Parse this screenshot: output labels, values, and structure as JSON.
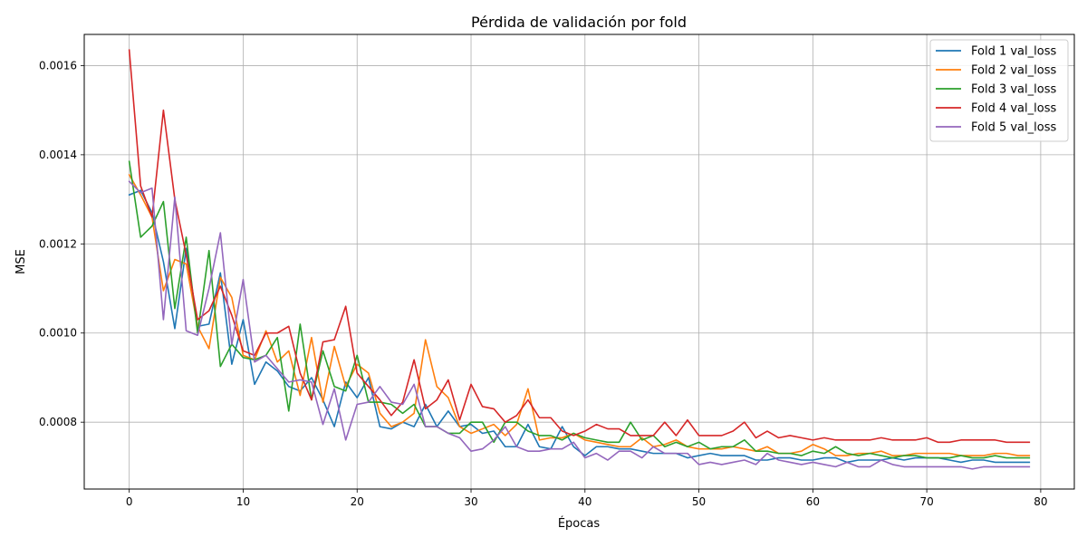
{
  "chart_data": {
    "type": "line",
    "title": "Pérdida de validación por fold",
    "xlabel": "Épocas",
    "ylabel": "MSE",
    "xlim": [
      -3.95,
      82.95
    ],
    "ylim": [
      0.00065,
      0.00167
    ],
    "xticks": [
      0,
      10,
      20,
      30,
      40,
      50,
      60,
      70,
      80
    ],
    "xtick_labels": [
      "0",
      "10",
      "20",
      "30",
      "40",
      "50",
      "60",
      "70",
      "80"
    ],
    "yticks": [
      0.0008,
      0.001,
      0.0012,
      0.0014,
      0.0016
    ],
    "ytick_labels": [
      "0.0008",
      "0.0010",
      "0.0012",
      "0.0014",
      "0.0016"
    ],
    "grid": true,
    "legend_position": "top-right",
    "series": [
      {
        "name": "Fold 1 val_loss",
        "color": "#1f77b4",
        "values": [
          0.00131,
          0.00132,
          0.00127,
          0.00116,
          0.00101,
          0.00119,
          0.001015,
          0.00102,
          0.001135,
          0.00093,
          0.00103,
          0.000885,
          0.000935,
          0.000915,
          0.00088,
          0.00087,
          0.0009,
          0.00085,
          0.00079,
          0.00089,
          0.000855,
          0.0009,
          0.00079,
          0.000785,
          0.0008,
          0.00079,
          0.00084,
          0.00079,
          0.000825,
          0.00079,
          0.000795,
          0.000775,
          0.00078,
          0.000745,
          0.000745,
          0.000795,
          0.000745,
          0.00074,
          0.00079,
          0.000745,
          0.000725,
          0.000745,
          0.000745,
          0.00074,
          0.00074,
          0.000735,
          0.00073,
          0.00073,
          0.00073,
          0.00072,
          0.000725,
          0.00073,
          0.000725,
          0.000725,
          0.000725,
          0.000715,
          0.000715,
          0.00072,
          0.00072,
          0.000715,
          0.000715,
          0.00072,
          0.00072,
          0.00071,
          0.000715,
          0.000715,
          0.000715,
          0.00072,
          0.000715,
          0.00072,
          0.00072,
          0.00072,
          0.000715,
          0.00071,
          0.000715,
          0.000715,
          0.00071,
          0.00071,
          0.00071,
          0.00071
        ]
      },
      {
        "name": "Fold 2 val_loss",
        "color": "#ff7f0e",
        "values": [
          0.001355,
          0.00131,
          0.00126,
          0.001095,
          0.001165,
          0.001155,
          0.001015,
          0.000965,
          0.001125,
          0.00108,
          0.00095,
          0.00094,
          0.001005,
          0.000935,
          0.00096,
          0.00086,
          0.00099,
          0.000845,
          0.00097,
          0.00088,
          0.00093,
          0.00091,
          0.00082,
          0.00079,
          0.0008,
          0.00082,
          0.000985,
          0.00088,
          0.000855,
          0.00079,
          0.000775,
          0.000785,
          0.000795,
          0.00077,
          0.000795,
          0.000875,
          0.00076,
          0.000765,
          0.000765,
          0.000775,
          0.00076,
          0.000755,
          0.00075,
          0.000745,
          0.000745,
          0.000765,
          0.000745,
          0.00075,
          0.00076,
          0.000745,
          0.00074,
          0.00074,
          0.00074,
          0.000745,
          0.00074,
          0.000735,
          0.000745,
          0.00073,
          0.00073,
          0.000735,
          0.00075,
          0.00074,
          0.000725,
          0.000725,
          0.00073,
          0.00073,
          0.000735,
          0.000725,
          0.000725,
          0.00073,
          0.00073,
          0.00073,
          0.00073,
          0.000725,
          0.000725,
          0.000725,
          0.00073,
          0.00073,
          0.000725,
          0.000725
        ]
      },
      {
        "name": "Fold 3 val_loss",
        "color": "#2ca02c",
        "values": [
          0.001385,
          0.001215,
          0.00124,
          0.001295,
          0.001055,
          0.001215,
          0.001,
          0.001185,
          0.000925,
          0.000975,
          0.000945,
          0.00094,
          0.00095,
          0.00099,
          0.000825,
          0.00102,
          0.00085,
          0.00096,
          0.00088,
          0.00087,
          0.00095,
          0.000845,
          0.000845,
          0.00084,
          0.00082,
          0.00084,
          0.00079,
          0.00079,
          0.000775,
          0.000775,
          0.0008,
          0.0008,
          0.000755,
          0.0008,
          0.0008,
          0.00078,
          0.00077,
          0.00077,
          0.00076,
          0.000775,
          0.000765,
          0.00076,
          0.000755,
          0.000755,
          0.0008,
          0.00076,
          0.00077,
          0.000745,
          0.000755,
          0.000745,
          0.000755,
          0.00074,
          0.000745,
          0.000745,
          0.00076,
          0.000735,
          0.000735,
          0.00073,
          0.00073,
          0.000725,
          0.000735,
          0.00073,
          0.000745,
          0.00073,
          0.000725,
          0.00073,
          0.000725,
          0.00072,
          0.000725,
          0.000725,
          0.00072,
          0.00072,
          0.00072,
          0.000725,
          0.00072,
          0.00072,
          0.000725,
          0.00072,
          0.00072,
          0.00072
        ]
      },
      {
        "name": "Fold 4 val_loss",
        "color": "#d62728",
        "values": [
          0.001635,
          0.00133,
          0.00126,
          0.0015,
          0.0013,
          0.001175,
          0.00103,
          0.00105,
          0.001105,
          0.00104,
          0.00096,
          0.00095,
          0.001,
          0.001,
          0.001015,
          0.00091,
          0.00085,
          0.00098,
          0.000985,
          0.00106,
          0.00091,
          0.00088,
          0.00085,
          0.000815,
          0.000845,
          0.00094,
          0.00083,
          0.00085,
          0.000895,
          0.000805,
          0.000885,
          0.000835,
          0.00083,
          0.0008,
          0.000815,
          0.00085,
          0.00081,
          0.00081,
          0.00078,
          0.00077,
          0.00078,
          0.000795,
          0.000785,
          0.000785,
          0.00077,
          0.00077,
          0.00077,
          0.0008,
          0.00077,
          0.000805,
          0.00077,
          0.00077,
          0.00077,
          0.00078,
          0.0008,
          0.000765,
          0.00078,
          0.000765,
          0.00077,
          0.000765,
          0.00076,
          0.000765,
          0.00076,
          0.00076,
          0.00076,
          0.00076,
          0.000765,
          0.00076,
          0.00076,
          0.00076,
          0.000765,
          0.000755,
          0.000755,
          0.00076,
          0.00076,
          0.00076,
          0.00076,
          0.000755,
          0.000755,
          0.000755
        ]
      },
      {
        "name": "Fold 5 val_loss",
        "color": "#9467bd",
        "values": [
          0.00134,
          0.001315,
          0.001325,
          0.00103,
          0.001305,
          0.001005,
          0.000995,
          0.0011,
          0.001225,
          0.000975,
          0.00112,
          0.000935,
          0.00095,
          0.00092,
          0.00089,
          0.000895,
          0.00089,
          0.000795,
          0.000875,
          0.00076,
          0.00084,
          0.000845,
          0.00088,
          0.000845,
          0.00084,
          0.000885,
          0.00079,
          0.00079,
          0.000775,
          0.000765,
          0.000735,
          0.00074,
          0.00076,
          0.00079,
          0.000745,
          0.000735,
          0.000735,
          0.00074,
          0.00074,
          0.000755,
          0.00072,
          0.00073,
          0.000715,
          0.000735,
          0.000735,
          0.00072,
          0.000745,
          0.00073,
          0.00073,
          0.00073,
          0.000705,
          0.00071,
          0.000705,
          0.00071,
          0.000715,
          0.000705,
          0.00073,
          0.000715,
          0.00071,
          0.000705,
          0.00071,
          0.000705,
          0.0007,
          0.00071,
          0.0007,
          0.0007,
          0.000715,
          0.000705,
          0.0007,
          0.0007,
          0.0007,
          0.0007,
          0.0007,
          0.0007,
          0.000695,
          0.0007,
          0.0007,
          0.0007,
          0.0007,
          0.0007
        ]
      }
    ]
  }
}
